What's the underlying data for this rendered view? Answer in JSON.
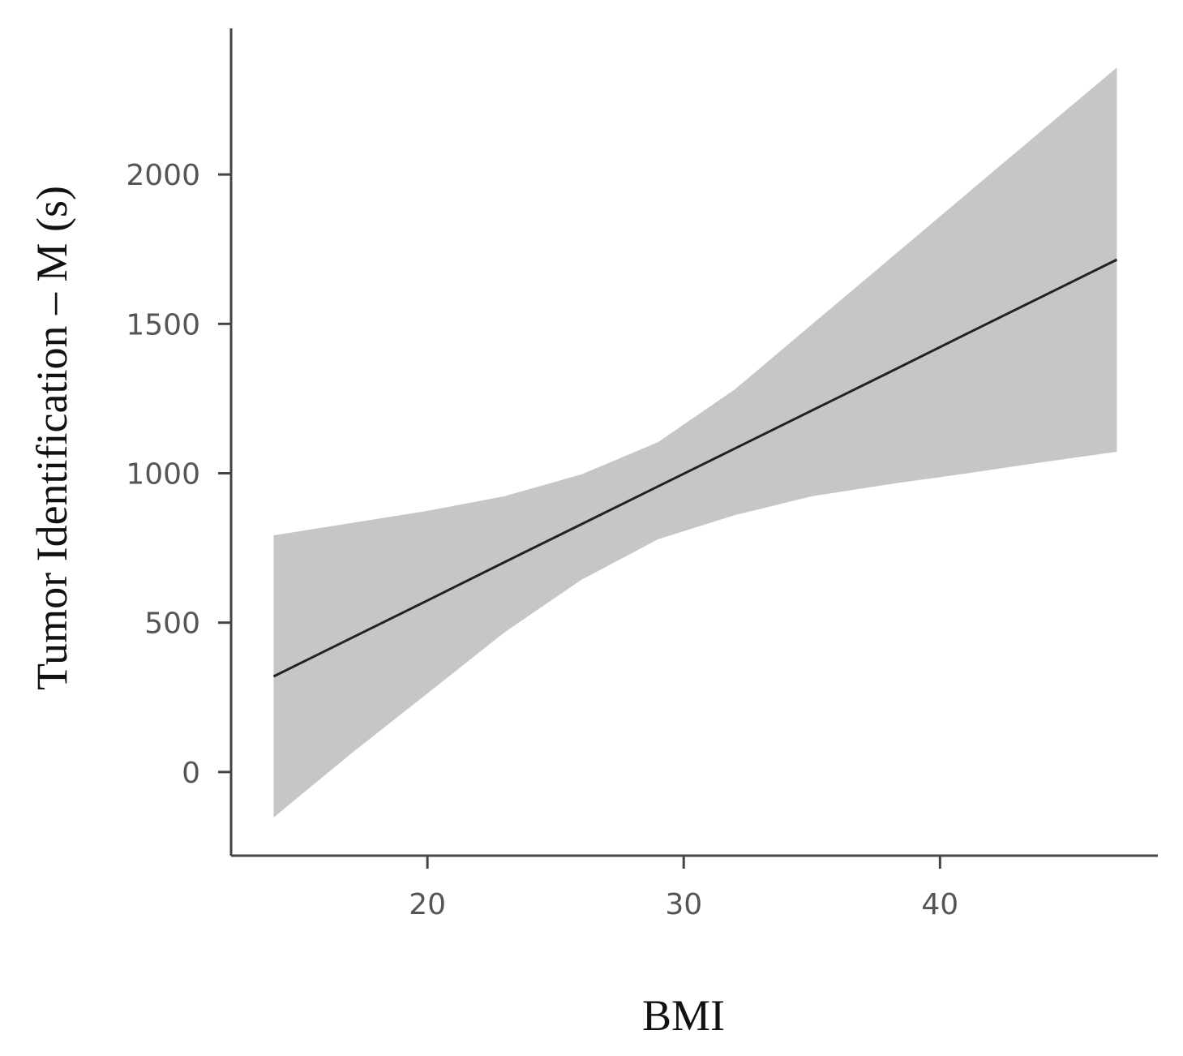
{
  "chart_data": {
    "type": "line",
    "x_label": "BMI",
    "y_label": "Tumor Identification – M  (s)",
    "x": [
      14,
      17,
      20,
      23,
      26,
      29,
      32,
      35,
      38,
      41,
      44,
      46.9
    ],
    "series": [
      {
        "color": "#222222",
        "values": [
          320,
          447,
          574,
          702,
          829,
          956,
          1083,
          1210,
          1337,
          1465,
          1592,
          1715
        ]
      }
    ],
    "band": {
      "color": "#c6c6c6",
      "upper": [
        792,
        833,
        874,
        923,
        996,
        1104,
        1281,
        1498,
        1715,
        1932,
        2149,
        2358
      ],
      "lower": [
        -152,
        60,
        263,
        467,
        643,
        779,
        860,
        923,
        963,
        999,
        1037,
        1072
      ]
    },
    "xlim": [
      12.34,
      48.5
    ],
    "ylim": [
      -280,
      2489
    ],
    "xticks": [
      20,
      30,
      40
    ],
    "yticks": [
      0,
      500,
      1000,
      1500,
      2000
    ]
  }
}
